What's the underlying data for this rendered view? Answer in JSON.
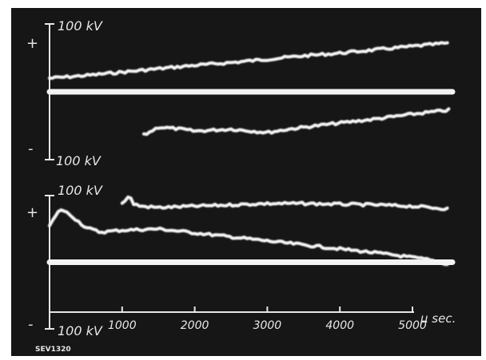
{
  "chart_data": {
    "type": "line",
    "title": "",
    "caption": "SEV1320",
    "x_axis": {
      "unit_label": "µ sec.",
      "ticks": [
        "1000",
        "2000",
        "3000",
        "4000",
        "5000"
      ],
      "range": [
        0,
        5600
      ]
    },
    "upper_panel": {
      "scale_top": "100 kV",
      "scale_bottom": "100 kV",
      "sign_top": "+",
      "sign_bottom": "-",
      "y_range_kV": [
        -100,
        100
      ],
      "zero_level_kV": 0,
      "series": [
        {
          "x": [
            0,
            500,
            1000,
            1500,
            2000,
            2500,
            3000,
            3500,
            4000,
            4500,
            5000,
            5500
          ],
          "y": [
            20,
            24,
            29,
            34,
            39,
            43,
            48,
            53,
            57,
            62,
            67,
            72
          ]
        },
        {
          "x": [
            1300,
            1500,
            1800,
            2000,
            2500,
            3000,
            3300,
            3600,
            4000,
            4500,
            5000,
            5500
          ],
          "y": [
            -64,
            -52,
            -55,
            -58,
            -55,
            -60,
            -55,
            -51,
            -46,
            -40,
            -33,
            -27
          ]
        }
      ]
    },
    "lower_panel": {
      "scale_top": "100 kV",
      "scale_bottom": "100 kV",
      "sign_top": "+",
      "sign_bottom": "-",
      "y_range_kV": [
        -100,
        100
      ],
      "zero_level_kV": 0,
      "series": [
        {
          "x": [
            0,
            150,
            300,
            500,
            700,
            1000,
            1500,
            2000,
            2500,
            3000,
            3500,
            4000,
            4500,
            4800,
            5200,
            5500
          ],
          "y": [
            55,
            80,
            70,
            52,
            45,
            48,
            50,
            44,
            38,
            32,
            26,
            20,
            14,
            10,
            4,
            -3
          ]
        },
        {
          "x": [
            1000,
            1100,
            1150,
            1250,
            1500,
            2000,
            2500,
            3000,
            3500,
            4000,
            4500,
            5000,
            5500
          ],
          "y": [
            88,
            100,
            88,
            84,
            82,
            84,
            86,
            88,
            88,
            87,
            86,
            84,
            80
          ]
        }
      ]
    }
  }
}
